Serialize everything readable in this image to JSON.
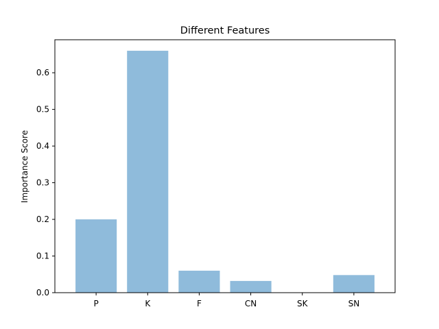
{
  "chart_data": {
    "type": "bar",
    "title": "Different Features",
    "xlabel": "",
    "ylabel": "Importance Score",
    "categories": [
      "P",
      "K",
      "F",
      "CN",
      "SK",
      "SN"
    ],
    "values": [
      0.2,
      0.66,
      0.06,
      0.032,
      0.0,
      0.048
    ],
    "ylim": [
      0,
      0.69
    ],
    "yticks": [
      0.0,
      0.1,
      0.2,
      0.3,
      0.4,
      0.5,
      0.6
    ],
    "ytick_labels": [
      "0.0",
      "0.1",
      "0.2",
      "0.3",
      "0.4",
      "0.5",
      "0.6"
    ],
    "bar_color": "#8fbbdb",
    "grid": false,
    "legend": "none"
  }
}
